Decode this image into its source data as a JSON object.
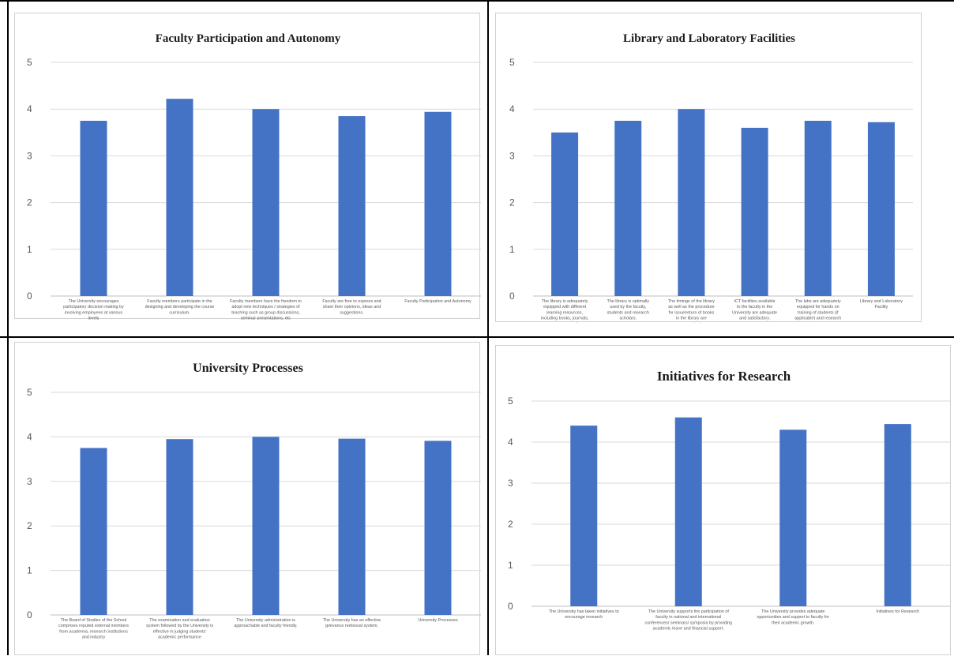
{
  "colors": {
    "bar": "#4472C4",
    "grid": "#d9d9d9",
    "axis": "#bfbfbf"
  },
  "chart_data": [
    {
      "type": "bar",
      "title": "Faculty Participation and Autonomy",
      "ylim": [
        0,
        5
      ],
      "yticks": [
        0,
        1,
        2,
        3,
        4,
        5
      ],
      "grid": true,
      "categories": [
        "The University encourages participatory decision making by involving employees at various levels",
        "Faculty members participate in the designing and developing the course curriculum.",
        "Faculty members have the freedom to adopt new techniques / strategies of teaching such as group discussions, seminar presentations, etc",
        "Faculty are free to express and share their opinions, ideas and suggestions.",
        "Faculty Participation and Autonomy"
      ],
      "values": [
        3.75,
        4.22,
        4.0,
        3.85,
        3.94
      ]
    },
    {
      "type": "bar",
      "title": "Library and Laboratory Facilities",
      "ylim": [
        0,
        5
      ],
      "yticks": [
        0,
        1,
        2,
        3,
        4,
        5
      ],
      "grid": true,
      "categories": [
        "The library is adequately equipped with different learning resources, including books, journals, e-resources etc",
        "The library is optimally used by the faculty, students and research scholars.",
        "The timings of the library as well as the procedure for issue/return of books in the library are convenient.",
        "ICT facilities available to the faculty in the University are adequate and satisfactory.",
        "The labs are adequately equipped for hands on training of students (if applicable) and research",
        "Library and Laboratory Facility"
      ],
      "values": [
        3.5,
        3.75,
        4.0,
        3.6,
        3.75,
        3.72
      ]
    },
    {
      "type": "bar",
      "title": "University Processes",
      "ylim": [
        0,
        5
      ],
      "yticks": [
        0,
        1,
        2,
        3,
        4,
        5
      ],
      "grid": true,
      "categories": [
        "The Board of Studies of the School comprises reputed external members from academia, research institutions and industry",
        "The examination and evaluation system followed by the University is effective in judging students' academic performance",
        "The University administration is approachable and faculty friendly.",
        "The University has an effective grievance redressal system.",
        "University Processes"
      ],
      "values": [
        3.75,
        3.95,
        4.0,
        3.96,
        3.91
      ]
    },
    {
      "type": "bar",
      "title": "Initiatives for Research",
      "ylim": [
        0,
        5
      ],
      "yticks": [
        0,
        1,
        2,
        3,
        4,
        5
      ],
      "grid": true,
      "categories": [
        "The University has taken initiatives to encourage research",
        "The University supports the participation of faculty in national and international conferences/ seminars/ symposia by providing academic leave and financial support.",
        "The University provides adequate opportunities and support to faculty for their academic growth.",
        "Initiatives for Research"
      ],
      "values": [
        4.4,
        4.6,
        4.3,
        4.44
      ]
    }
  ]
}
